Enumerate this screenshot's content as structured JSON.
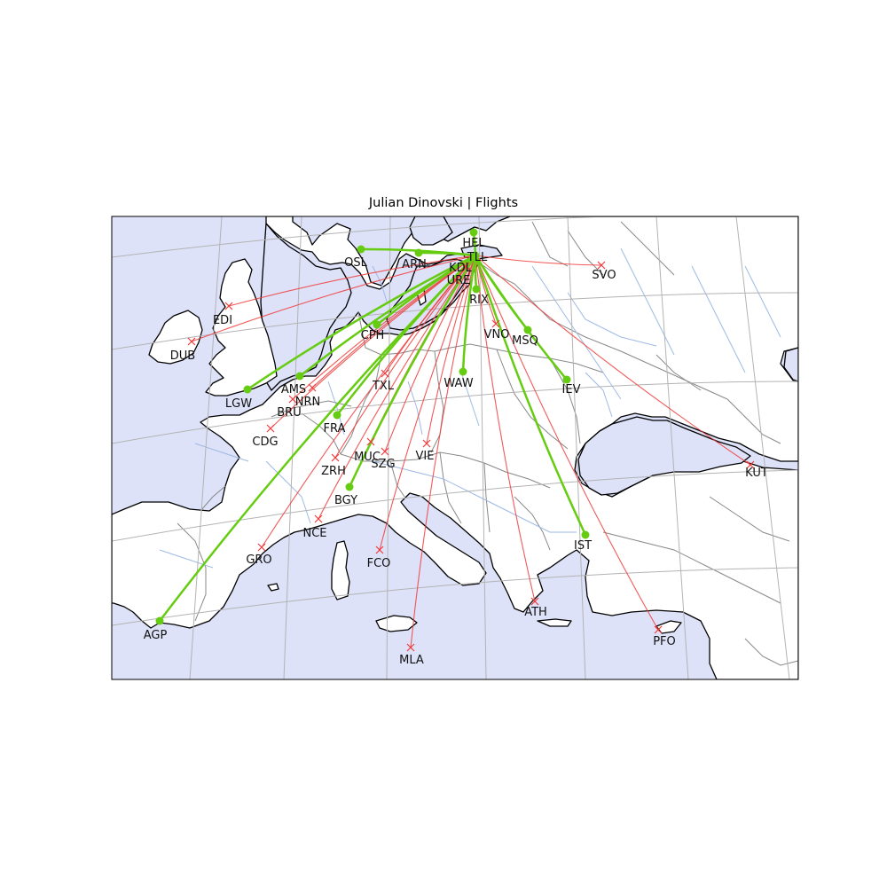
{
  "title": "Julian Dinovski | Flights",
  "colors": {
    "ocean": "#dde2f8",
    "land": "#ffffff",
    "coast": "#000000",
    "border": "#888888",
    "river": "#9db9e4",
    "graticule": "#b3b3b3",
    "route_once": "#f03c3c",
    "route_frequent": "#66cc11"
  },
  "map": {
    "region": "Europe",
    "projection": "Lambert conformal (approx.)",
    "hub": "TLL"
  },
  "chart_data": {
    "type": "route-map",
    "title": "Julian Dinovski | Flights",
    "hub": "TLL",
    "airports": [
      {
        "code": "TLL",
        "frequent": true
      },
      {
        "code": "HEL",
        "frequent": true
      },
      {
        "code": "ARN",
        "frequent": true
      },
      {
        "code": "OSL",
        "frequent": true
      },
      {
        "code": "KDL",
        "frequent": false
      },
      {
        "code": "URE",
        "frequent": false
      },
      {
        "code": "RIX",
        "frequent": true
      },
      {
        "code": "SVO",
        "frequent": false
      },
      {
        "code": "EDI",
        "frequent": false
      },
      {
        "code": "DUB",
        "frequent": false
      },
      {
        "code": "CPH",
        "frequent": true
      },
      {
        "code": "VNO",
        "frequent": false
      },
      {
        "code": "MSQ",
        "frequent": true
      },
      {
        "code": "AMS",
        "frequent": true
      },
      {
        "code": "LGW",
        "frequent": true
      },
      {
        "code": "TXL",
        "frequent": false
      },
      {
        "code": "WAW",
        "frequent": true
      },
      {
        "code": "IEV",
        "frequent": true
      },
      {
        "code": "BRU",
        "frequent": false
      },
      {
        "code": "NRN",
        "frequent": false
      },
      {
        "code": "FRA",
        "frequent": true
      },
      {
        "code": "CDG",
        "frequent": false
      },
      {
        "code": "MUC",
        "frequent": false
      },
      {
        "code": "SZG",
        "frequent": false
      },
      {
        "code": "VIE",
        "frequent": false
      },
      {
        "code": "ZRH",
        "frequent": false
      },
      {
        "code": "KUT",
        "frequent": false
      },
      {
        "code": "BGY",
        "frequent": true
      },
      {
        "code": "NCE",
        "frequent": false
      },
      {
        "code": "GRO",
        "frequent": false
      },
      {
        "code": "FCO",
        "frequent": false
      },
      {
        "code": "IST",
        "frequent": true
      },
      {
        "code": "ATH",
        "frequent": false
      },
      {
        "code": "PFO",
        "frequent": false
      },
      {
        "code": "AGP",
        "frequent": true
      },
      {
        "code": "MLA",
        "frequent": false
      }
    ],
    "routes": [
      {
        "from": "TLL",
        "to": "HEL",
        "frequent": true
      },
      {
        "from": "TLL",
        "to": "ARN",
        "frequent": true
      },
      {
        "from": "TLL",
        "to": "OSL",
        "frequent": true
      },
      {
        "from": "TLL",
        "to": "KDL",
        "frequent": false
      },
      {
        "from": "TLL",
        "to": "URE",
        "frequent": false
      },
      {
        "from": "TLL",
        "to": "RIX",
        "frequent": true
      },
      {
        "from": "TLL",
        "to": "SVO",
        "frequent": false
      },
      {
        "from": "TLL",
        "to": "EDI",
        "frequent": false
      },
      {
        "from": "TLL",
        "to": "DUB",
        "frequent": false
      },
      {
        "from": "TLL",
        "to": "CPH",
        "frequent": true
      },
      {
        "from": "TLL",
        "to": "VNO",
        "frequent": false
      },
      {
        "from": "TLL",
        "to": "MSQ",
        "frequent": true
      },
      {
        "from": "TLL",
        "to": "AMS",
        "frequent": true
      },
      {
        "from": "TLL",
        "to": "LGW",
        "frequent": true
      },
      {
        "from": "TLL",
        "to": "TXL",
        "frequent": false
      },
      {
        "from": "TLL",
        "to": "WAW",
        "frequent": true
      },
      {
        "from": "TLL",
        "to": "IEV",
        "frequent": true
      },
      {
        "from": "TLL",
        "to": "BRU",
        "frequent": false
      },
      {
        "from": "TLL",
        "to": "NRN",
        "frequent": false
      },
      {
        "from": "TLL",
        "to": "FRA",
        "frequent": true
      },
      {
        "from": "TLL",
        "to": "CDG",
        "frequent": false
      },
      {
        "from": "TLL",
        "to": "MUC",
        "frequent": false
      },
      {
        "from": "TLL",
        "to": "SZG",
        "frequent": false
      },
      {
        "from": "TLL",
        "to": "VIE",
        "frequent": false
      },
      {
        "from": "TLL",
        "to": "ZRH",
        "frequent": false
      },
      {
        "from": "TLL",
        "to": "KUT",
        "frequent": false
      },
      {
        "from": "TLL",
        "to": "BGY",
        "frequent": true
      },
      {
        "from": "TLL",
        "to": "NCE",
        "frequent": false
      },
      {
        "from": "TLL",
        "to": "GRO",
        "frequent": false
      },
      {
        "from": "TLL",
        "to": "FCO",
        "frequent": false
      },
      {
        "from": "TLL",
        "to": "IST",
        "frequent": true
      },
      {
        "from": "TLL",
        "to": "ATH",
        "frequent": false
      },
      {
        "from": "TLL",
        "to": "PFO",
        "frequent": false
      },
      {
        "from": "TLL",
        "to": "AGP",
        "frequent": true
      },
      {
        "from": "TLL",
        "to": "MLA",
        "frequent": false
      }
    ]
  }
}
